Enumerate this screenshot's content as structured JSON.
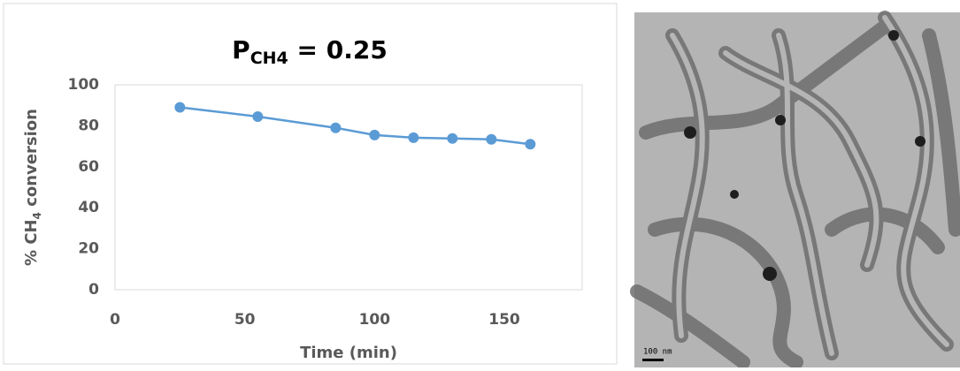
{
  "chart_data": {
    "type": "line",
    "title": {
      "main": "P",
      "sub": "CH4",
      "rest": " = 0.25"
    },
    "y_label": {
      "main": "% CH",
      "sub": "4",
      "rest": " conversion"
    },
    "x_label": "Time (min)",
    "x": [
      25,
      55,
      85,
      100,
      115,
      130,
      145,
      160
    ],
    "series": [
      {
        "color": "#5b9bd5",
        "values": [
          89,
          84.5,
          79,
          75.5,
          74.2,
          73.8,
          73.4,
          71
        ]
      }
    ],
    "xlim": [
      0,
      180
    ],
    "ylim": [
      0,
      100
    ],
    "xticks": [
      0,
      50,
      100,
      150
    ],
    "yticks": [
      0,
      20,
      40,
      60,
      80,
      100
    ],
    "grid": false
  },
  "image": {
    "scale_label": "100 nm"
  }
}
